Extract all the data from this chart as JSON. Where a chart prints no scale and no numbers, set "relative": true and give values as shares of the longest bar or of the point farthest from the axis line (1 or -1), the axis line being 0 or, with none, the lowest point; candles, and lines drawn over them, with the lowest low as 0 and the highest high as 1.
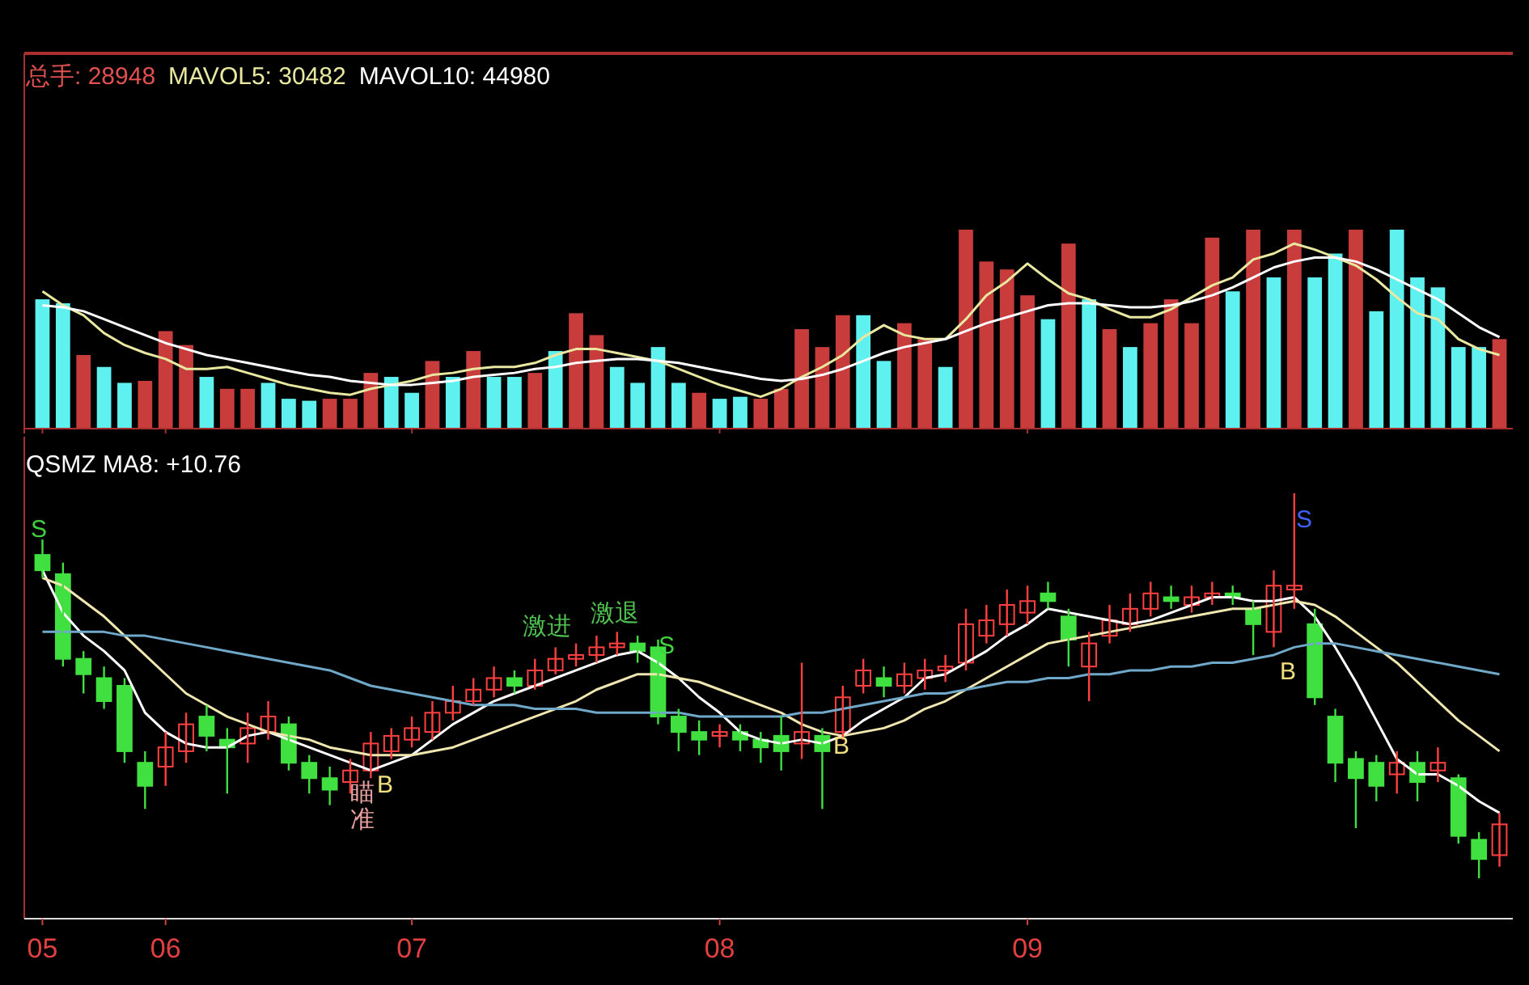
{
  "chart_data": [
    {
      "type": "bar",
      "title": "总手: 28948",
      "relative": true,
      "tick_labels": false,
      "categories": [
        "05",
        null,
        null,
        null,
        null,
        null,
        "06",
        null,
        null,
        null,
        null,
        null,
        null,
        null,
        null,
        null,
        null,
        null,
        "07",
        null,
        null,
        null,
        null,
        null,
        null,
        null,
        null,
        null,
        null,
        null,
        null,
        null,
        null,
        "08",
        null,
        null,
        null,
        null,
        null,
        null,
        null,
        null,
        null,
        null,
        null,
        null,
        null,
        null,
        "09",
        null,
        null,
        null,
        null,
        null,
        null,
        null,
        null,
        null,
        null,
        null,
        null,
        null,
        null,
        null,
        null,
        null,
        null,
        null,
        null,
        null,
        null,
        null
      ],
      "values": [
        0.65,
        0.63,
        0.37,
        0.31,
        0.23,
        0.24,
        0.49,
        0.42,
        0.26,
        0.2,
        0.2,
        0.23,
        0.15,
        0.14,
        0.15,
        0.15,
        0.28,
        0.26,
        0.18,
        0.34,
        0.26,
        0.39,
        0.26,
        0.26,
        0.28,
        0.39,
        0.58,
        0.47,
        0.31,
        0.23,
        0.41,
        0.23,
        0.18,
        0.15,
        0.16,
        0.15,
        0.2,
        0.5,
        0.41,
        0.57,
        0.57,
        0.34,
        0.53,
        0.45,
        0.31,
        1.0,
        0.84,
        0.8,
        0.67,
        0.55,
        0.93,
        0.65,
        0.5,
        0.41,
        0.53,
        0.65,
        0.53,
        0.96,
        0.69,
        1.0,
        0.76,
        1.0,
        0.76,
        0.88,
        1.0,
        0.59,
        1.0,
        0.76,
        0.71,
        0.41,
        0.41,
        0.45
      ],
      "colors": [
        "#5ff0f0",
        "#5ff0f0",
        "#c83c3c",
        "#5ff0f0",
        "#5ff0f0",
        "#c83c3c",
        "#c83c3c",
        "#c83c3c",
        "#5ff0f0",
        "#c83c3c",
        "#c83c3c",
        "#5ff0f0",
        "#5ff0f0",
        "#5ff0f0",
        "#c83c3c",
        "#c83c3c",
        "#c83c3c",
        "#5ff0f0",
        "#5ff0f0",
        "#c83c3c",
        "#5ff0f0",
        "#c83c3c",
        "#5ff0f0",
        "#5ff0f0",
        "#c83c3c",
        "#5ff0f0",
        "#c83c3c",
        "#c83c3c",
        "#5ff0f0",
        "#5ff0f0",
        "#5ff0f0",
        "#5ff0f0",
        "#c83c3c",
        "#5ff0f0",
        "#5ff0f0",
        "#c83c3c",
        "#c83c3c",
        "#c83c3c",
        "#c83c3c",
        "#c83c3c",
        "#5ff0f0",
        "#5ff0f0",
        "#c83c3c",
        "#c83c3c",
        "#5ff0f0",
        "#c83c3c",
        "#c83c3c",
        "#c83c3c",
        "#c83c3c",
        "#5ff0f0",
        "#c83c3c",
        "#5ff0f0",
        "#c83c3c",
        "#5ff0f0",
        "#c83c3c",
        "#c83c3c",
        "#c83c3c",
        "#c83c3c",
        "#5ff0f0",
        "#c83c3c",
        "#5ff0f0",
        "#c83c3c",
        "#5ff0f0",
        "#5ff0f0",
        "#c83c3c",
        "#5ff0f0",
        "#5ff0f0",
        "#5ff0f0",
        "#5ff0f0",
        "#5ff0f0",
        "#5ff0f0",
        "#c83c3c"
      ],
      "series": [
        {
          "type": "line",
          "name": "MAVOL5: 30482",
          "color": "#e8e8a0",
          "values": [
            0.69,
            0.62,
            0.57,
            0.48,
            0.42,
            0.38,
            0.35,
            0.3,
            0.3,
            0.31,
            0.28,
            0.25,
            0.22,
            0.2,
            0.18,
            0.17,
            0.2,
            0.22,
            0.24,
            0.27,
            0.28,
            0.3,
            0.31,
            0.31,
            0.33,
            0.37,
            0.4,
            0.4,
            0.38,
            0.36,
            0.34,
            0.3,
            0.26,
            0.22,
            0.19,
            0.16,
            0.2,
            0.26,
            0.31,
            0.37,
            0.46,
            0.52,
            0.47,
            0.45,
            0.45,
            0.55,
            0.67,
            0.74,
            0.83,
            0.75,
            0.68,
            0.65,
            0.6,
            0.56,
            0.56,
            0.6,
            0.66,
            0.72,
            0.76,
            0.85,
            0.88,
            0.93,
            0.9,
            0.86,
            0.82,
            0.75,
            0.66,
            0.58,
            0.55,
            0.45,
            0.4,
            0.37
          ]
        },
        {
          "type": "line",
          "name": "MAVOL10: 44980",
          "color": "#ffffff",
          "values": [
            0.62,
            0.61,
            0.59,
            0.55,
            0.51,
            0.47,
            0.43,
            0.4,
            0.37,
            0.35,
            0.33,
            0.31,
            0.29,
            0.27,
            0.26,
            0.24,
            0.23,
            0.22,
            0.22,
            0.23,
            0.24,
            0.26,
            0.27,
            0.28,
            0.3,
            0.31,
            0.33,
            0.34,
            0.35,
            0.35,
            0.34,
            0.33,
            0.31,
            0.29,
            0.27,
            0.25,
            0.24,
            0.25,
            0.27,
            0.3,
            0.34,
            0.38,
            0.41,
            0.43,
            0.45,
            0.49,
            0.53,
            0.56,
            0.59,
            0.62,
            0.63,
            0.63,
            0.62,
            0.61,
            0.61,
            0.62,
            0.64,
            0.67,
            0.71,
            0.76,
            0.81,
            0.84,
            0.86,
            0.86,
            0.84,
            0.8,
            0.75,
            0.7,
            0.65,
            0.58,
            0.51,
            0.46
          ]
        }
      ]
    },
    {
      "type": "candlestick",
      "title": "QSMZ MA8: +10.76",
      "relative": true,
      "categories": [
        "05",
        null,
        null,
        null,
        null,
        null,
        "06",
        null,
        null,
        null,
        null,
        null,
        null,
        null,
        null,
        null,
        null,
        null,
        "07",
        null,
        null,
        null,
        null,
        null,
        null,
        null,
        null,
        null,
        null,
        null,
        null,
        null,
        null,
        "08",
        null,
        null,
        null,
        null,
        null,
        null,
        null,
        null,
        null,
        null,
        null,
        null,
        null,
        null,
        "09",
        null,
        null,
        null,
        null,
        null,
        null,
        null,
        null,
        null,
        null,
        null,
        null,
        null,
        null,
        null,
        null,
        null,
        null,
        null,
        null,
        null,
        null,
        null
      ],
      "ohlc": [
        [
          0.84,
          0.88,
          0.78,
          0.8
        ],
        [
          0.79,
          0.82,
          0.55,
          0.57
        ],
        [
          0.57,
          0.59,
          0.48,
          0.53
        ],
        [
          0.52,
          0.55,
          0.44,
          0.46
        ],
        [
          0.5,
          0.52,
          0.3,
          0.33
        ],
        [
          0.3,
          0.33,
          0.18,
          0.24
        ],
        [
          0.29,
          0.38,
          0.24,
          0.34
        ],
        [
          0.33,
          0.43,
          0.3,
          0.4
        ],
        [
          0.42,
          0.45,
          0.33,
          0.37
        ],
        [
          0.36,
          0.39,
          0.22,
          0.34
        ],
        [
          0.35,
          0.43,
          0.3,
          0.39
        ],
        [
          0.38,
          0.46,
          0.36,
          0.42
        ],
        [
          0.4,
          0.42,
          0.28,
          0.3
        ],
        [
          0.3,
          0.32,
          0.22,
          0.26
        ],
        [
          0.26,
          0.29,
          0.19,
          0.23
        ],
        [
          0.25,
          0.31,
          0.22,
          0.28
        ],
        [
          0.28,
          0.38,
          0.26,
          0.35
        ],
        [
          0.33,
          0.39,
          0.31,
          0.37
        ],
        [
          0.36,
          0.42,
          0.34,
          0.39
        ],
        [
          0.38,
          0.46,
          0.36,
          0.43
        ],
        [
          0.43,
          0.5,
          0.41,
          0.46
        ],
        [
          0.46,
          0.52,
          0.45,
          0.49
        ],
        [
          0.49,
          0.55,
          0.47,
          0.52
        ],
        [
          0.52,
          0.54,
          0.48,
          0.5
        ],
        [
          0.5,
          0.57,
          0.49,
          0.54
        ],
        [
          0.54,
          0.6,
          0.53,
          0.57
        ],
        [
          0.57,
          0.61,
          0.55,
          0.58
        ],
        [
          0.58,
          0.63,
          0.56,
          0.6
        ],
        [
          0.6,
          0.64,
          0.58,
          0.61
        ],
        [
          0.61,
          0.63,
          0.56,
          0.59
        ],
        [
          0.6,
          0.62,
          0.4,
          0.42
        ],
        [
          0.42,
          0.44,
          0.33,
          0.38
        ],
        [
          0.38,
          0.41,
          0.32,
          0.36
        ],
        [
          0.37,
          0.4,
          0.34,
          0.38
        ],
        [
          0.38,
          0.4,
          0.33,
          0.36
        ],
        [
          0.36,
          0.38,
          0.3,
          0.34
        ],
        [
          0.37,
          0.42,
          0.28,
          0.33
        ],
        [
          0.35,
          0.56,
          0.31,
          0.38
        ],
        [
          0.37,
          0.39,
          0.18,
          0.33
        ],
        [
          0.38,
          0.5,
          0.36,
          0.47
        ],
        [
          0.5,
          0.57,
          0.48,
          0.54
        ],
        [
          0.52,
          0.55,
          0.47,
          0.5
        ],
        [
          0.5,
          0.56,
          0.48,
          0.53
        ],
        [
          0.52,
          0.57,
          0.49,
          0.54
        ],
        [
          0.54,
          0.58,
          0.51,
          0.55
        ],
        [
          0.56,
          0.7,
          0.54,
          0.66
        ],
        [
          0.63,
          0.71,
          0.61,
          0.67
        ],
        [
          0.66,
          0.75,
          0.63,
          0.71
        ],
        [
          0.69,
          0.76,
          0.66,
          0.72
        ],
        [
          0.74,
          0.77,
          0.7,
          0.72
        ],
        [
          0.68,
          0.7,
          0.55,
          0.62
        ],
        [
          0.55,
          0.64,
          0.46,
          0.61
        ],
        [
          0.63,
          0.71,
          0.61,
          0.67
        ],
        [
          0.66,
          0.74,
          0.64,
          0.7
        ],
        [
          0.7,
          0.77,
          0.68,
          0.74
        ],
        [
          0.73,
          0.76,
          0.7,
          0.72
        ],
        [
          0.71,
          0.76,
          0.69,
          0.73
        ],
        [
          0.73,
          0.77,
          0.71,
          0.74
        ],
        [
          0.74,
          0.76,
          0.71,
          0.73
        ],
        [
          0.7,
          0.72,
          0.58,
          0.66
        ],
        [
          0.64,
          0.8,
          0.6,
          0.76
        ],
        [
          0.75,
          1.0,
          0.7,
          0.76
        ],
        [
          0.66,
          0.7,
          0.45,
          0.47
        ],
        [
          0.42,
          0.44,
          0.25,
          0.3
        ],
        [
          0.31,
          0.33,
          0.13,
          0.26
        ],
        [
          0.3,
          0.32,
          0.2,
          0.24
        ],
        [
          0.27,
          0.33,
          0.22,
          0.3
        ],
        [
          0.3,
          0.33,
          0.2,
          0.25
        ],
        [
          0.28,
          0.34,
          0.25,
          0.3
        ],
        [
          0.26,
          0.27,
          0.09,
          0.11
        ],
        [
          0.1,
          0.12,
          0.0,
          0.05
        ],
        [
          0.06,
          0.17,
          0.03,
          0.14
        ]
      ],
      "colors": [
        "#40e040",
        "#40e040",
        "#40e040",
        "#40e040",
        "#40e040",
        "#40e040",
        "#ff4040",
        "#ff4040",
        "#40e040",
        "#40e040",
        "#ff4040",
        "#ff4040",
        "#40e040",
        "#40e040",
        "#40e040",
        "#ff4040",
        "#ff4040",
        "#ff4040",
        "#ff4040",
        "#ff4040",
        "#ff4040",
        "#ff4040",
        "#ff4040",
        "#40e040",
        "#ff4040",
        "#ff4040",
        "#ff4040",
        "#ff4040",
        "#ff4040",
        "#40e040",
        "#40e040",
        "#40e040",
        "#40e040",
        "#ff4040",
        "#40e040",
        "#40e040",
        "#40e040",
        "#ff4040",
        "#40e040",
        "#ff4040",
        "#ff4040",
        "#40e040",
        "#ff4040",
        "#ff4040",
        "#ff4040",
        "#ff4040",
        "#ff4040",
        "#ff4040",
        "#ff4040",
        "#40e040",
        "#40e040",
        "#ff4040",
        "#ff4040",
        "#ff4040",
        "#ff4040",
        "#40e040",
        "#ff4040",
        "#ff4040",
        "#40e040",
        "#40e040",
        "#ff4040",
        "#ff4040",
        "#40e040",
        "#40e040",
        "#40e040",
        "#40e040",
        "#ff4040",
        "#40e040",
        "#ff4040",
        "#40e040",
        "#40e040",
        "#ff4040"
      ],
      "series": [
        {
          "type": "line",
          "color": "#ffffff",
          "values": [
            0.8,
            0.69,
            0.63,
            0.59,
            0.54,
            0.43,
            0.38,
            0.35,
            0.34,
            0.34,
            0.37,
            0.38,
            0.36,
            0.34,
            0.32,
            0.3,
            0.28,
            0.3,
            0.32,
            0.36,
            0.4,
            0.43,
            0.46,
            0.48,
            0.5,
            0.52,
            0.54,
            0.56,
            0.58,
            0.59,
            0.56,
            0.52,
            0.47,
            0.43,
            0.38,
            0.36,
            0.35,
            0.36,
            0.35,
            0.37,
            0.41,
            0.44,
            0.47,
            0.52,
            0.53,
            0.56,
            0.59,
            0.63,
            0.66,
            0.7,
            0.69,
            0.68,
            0.67,
            0.66,
            0.67,
            0.69,
            0.71,
            0.73,
            0.73,
            0.72,
            0.72,
            0.73,
            0.68,
            0.6,
            0.51,
            0.41,
            0.31,
            0.27,
            0.27,
            0.24,
            0.2,
            0.17
          ]
        },
        {
          "type": "line",
          "color": "#f0e6b0",
          "values": [
            0.78,
            0.76,
            0.72,
            0.68,
            0.63,
            0.58,
            0.53,
            0.48,
            0.45,
            0.42,
            0.4,
            0.38,
            0.37,
            0.36,
            0.34,
            0.33,
            0.32,
            0.32,
            0.32,
            0.33,
            0.34,
            0.36,
            0.38,
            0.4,
            0.42,
            0.44,
            0.46,
            0.49,
            0.51,
            0.53,
            0.53,
            0.52,
            0.51,
            0.49,
            0.47,
            0.45,
            0.43,
            0.4,
            0.38,
            0.37,
            0.38,
            0.39,
            0.41,
            0.44,
            0.46,
            0.49,
            0.52,
            0.55,
            0.58,
            0.61,
            0.62,
            0.63,
            0.64,
            0.65,
            0.66,
            0.67,
            0.68,
            0.69,
            0.7,
            0.7,
            0.71,
            0.72,
            0.71,
            0.68,
            0.64,
            0.6,
            0.56,
            0.51,
            0.46,
            0.41,
            0.37,
            0.33
          ]
        },
        {
          "type": "line",
          "color": "#6fa8c8",
          "values": [
            0.64,
            0.64,
            0.64,
            0.64,
            0.63,
            0.63,
            0.62,
            0.61,
            0.6,
            0.59,
            0.58,
            0.57,
            0.56,
            0.55,
            0.54,
            0.52,
            0.5,
            0.49,
            0.48,
            0.47,
            0.46,
            0.45,
            0.45,
            0.45,
            0.44,
            0.44,
            0.44,
            0.43,
            0.43,
            0.43,
            0.43,
            0.43,
            0.42,
            0.42,
            0.42,
            0.42,
            0.42,
            0.43,
            0.43,
            0.44,
            0.45,
            0.46,
            0.47,
            0.48,
            0.48,
            0.49,
            0.5,
            0.51,
            0.51,
            0.52,
            0.52,
            0.53,
            0.53,
            0.54,
            0.54,
            0.55,
            0.55,
            0.56,
            0.56,
            0.57,
            0.58,
            0.6,
            0.61,
            0.61,
            0.6,
            0.59,
            0.58,
            0.57,
            0.56,
            0.55,
            0.54,
            0.53
          ]
        }
      ],
      "annotations": [
        "S",
        "瞄准",
        "B",
        "激进",
        "激退",
        "S",
        "B",
        "B",
        "S"
      ]
    }
  ]
}
